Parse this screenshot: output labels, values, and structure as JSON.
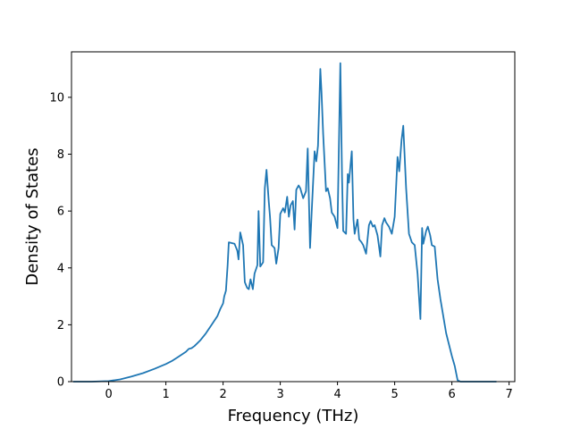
{
  "chart_data": {
    "type": "line",
    "title": "",
    "xlabel": "Frequency (THz)",
    "ylabel": "Density of States",
    "xlim": [
      -0.65,
      7.1
    ],
    "ylim": [
      0,
      11.6
    ],
    "xticks": [
      0,
      1,
      2,
      3,
      4,
      5,
      6,
      7
    ],
    "yticks": [
      0,
      2,
      4,
      6,
      8,
      10
    ],
    "grid": false,
    "line_color": "#1f77b4",
    "series": [
      {
        "x": [
          -0.62,
          -0.3,
          0.0,
          0.2,
          0.4,
          0.6,
          0.8,
          1.0,
          1.1,
          1.2,
          1.3,
          1.35,
          1.4,
          1.45,
          1.5,
          1.6,
          1.7,
          1.8,
          1.9,
          1.95,
          2.0,
          2.02,
          2.05,
          2.08,
          2.1,
          2.2,
          2.25,
          2.27,
          2.3,
          2.35,
          2.38,
          2.42,
          2.45,
          2.48,
          2.52,
          2.55,
          2.6,
          2.62,
          2.65,
          2.7,
          2.73,
          2.76,
          2.8,
          2.82,
          2.85,
          2.9,
          2.93,
          2.97,
          3.0,
          3.05,
          3.08,
          3.12,
          3.15,
          3.18,
          3.22,
          3.25,
          3.28,
          3.32,
          3.35,
          3.4,
          3.45,
          3.48,
          3.52,
          3.55,
          3.6,
          3.63,
          3.66,
          3.7,
          3.72,
          3.75,
          3.8,
          3.83,
          3.87,
          3.9,
          3.95,
          4.0,
          4.05,
          4.08,
          4.1,
          4.15,
          4.18,
          4.2,
          4.25,
          4.28,
          4.3,
          4.35,
          4.38,
          4.42,
          4.45,
          4.5,
          4.55,
          4.58,
          4.62,
          4.65,
          4.7,
          4.75,
          4.78,
          4.82,
          4.85,
          4.9,
          4.95,
          5.0,
          5.05,
          5.08,
          5.12,
          5.15,
          5.2,
          5.25,
          5.3,
          5.35,
          5.4,
          5.45,
          5.48,
          5.5,
          5.55,
          5.58,
          5.62,
          5.65,
          5.7,
          5.75,
          5.8,
          5.85,
          5.9,
          5.95,
          6.0,
          6.05,
          6.1,
          6.15,
          6.2,
          6.5,
          6.78
        ],
        "y": [
          0,
          0,
          0.02,
          0.08,
          0.18,
          0.3,
          0.45,
          0.62,
          0.72,
          0.85,
          0.98,
          1.05,
          1.15,
          1.18,
          1.25,
          1.45,
          1.7,
          2.0,
          2.3,
          2.55,
          2.75,
          3.0,
          3.2,
          4.1,
          4.9,
          4.85,
          4.6,
          4.3,
          5.25,
          4.8,
          3.5,
          3.3,
          3.25,
          3.6,
          3.25,
          3.8,
          4.1,
          6.0,
          4.05,
          4.2,
          6.8,
          7.45,
          6.3,
          5.8,
          4.8,
          4.7,
          4.15,
          4.7,
          5.9,
          6.1,
          5.95,
          6.5,
          5.8,
          6.2,
          6.35,
          5.35,
          6.75,
          6.9,
          6.8,
          6.45,
          6.7,
          8.2,
          4.7,
          6.0,
          8.1,
          7.75,
          8.3,
          11.0,
          10.2,
          8.7,
          6.7,
          6.8,
          6.45,
          5.95,
          5.8,
          5.4,
          11.2,
          7.2,
          5.3,
          5.2,
          7.3,
          7.0,
          8.1,
          5.7,
          5.2,
          5.7,
          5.0,
          4.9,
          4.8,
          4.5,
          5.5,
          5.65,
          5.45,
          5.5,
          5.15,
          4.4,
          5.5,
          5.75,
          5.6,
          5.45,
          5.2,
          5.8,
          7.9,
          7.4,
          8.5,
          9.0,
          6.8,
          5.2,
          4.9,
          4.8,
          3.8,
          2.2,
          5.4,
          4.85,
          5.3,
          5.45,
          5.15,
          4.8,
          4.75,
          3.6,
          2.9,
          2.3,
          1.7,
          1.3,
          0.9,
          0.55,
          0.05,
          0,
          0,
          0,
          0
        ]
      }
    ]
  }
}
